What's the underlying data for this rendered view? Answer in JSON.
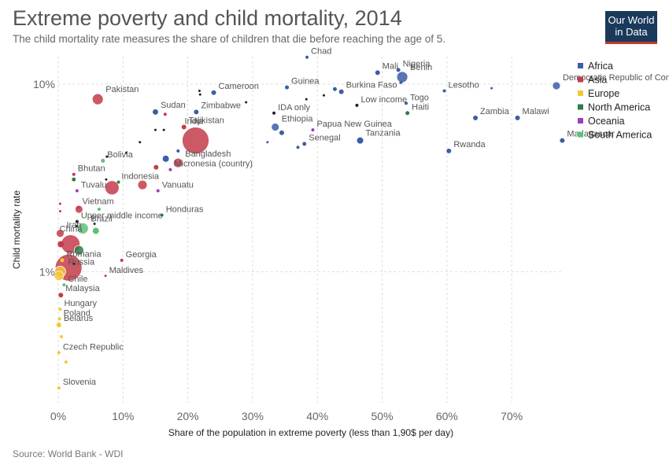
{
  "header": {
    "title": "Extreme poverty and child mortality, 2014",
    "subtitle": "The child mortality rate measures the share of children that die before reaching the age of 5."
  },
  "logo": {
    "line1": "Our World",
    "line2": "in Data"
  },
  "footer": {
    "source": "Source: World Bank - WDI"
  },
  "chart_data": {
    "type": "scatter",
    "title": "Extreme poverty and child mortality, 2014",
    "xlabel": "Share of the population in extreme poverty (less than 1,90$ per day)",
    "ylabel": "Child mortality rate",
    "x_unit": "%",
    "y_unit": "%",
    "xlim": [
      0,
      78
    ],
    "ylim": [
      0.2,
      14
    ],
    "y_scale": "log",
    "x_ticks": [
      0,
      10,
      20,
      30,
      40,
      50,
      60,
      70
    ],
    "x_tick_labels": [
      "0%",
      "10%",
      "20%",
      "30%",
      "40%",
      "50%",
      "60%",
      "70%"
    ],
    "y_ticks": [
      1,
      10
    ],
    "y_tick_labels": [
      "1%",
      "10%"
    ],
    "grid": true,
    "legend_position": "right",
    "legend": [
      {
        "name": "Africa",
        "color": "#3c5da8"
      },
      {
        "name": "Asia",
        "color": "#c33c4a"
      },
      {
        "name": "Europe",
        "color": "#f3c737"
      },
      {
        "name": "North America",
        "color": "#2e7d45"
      },
      {
        "name": "Oceania",
        "color": "#9b3fb5"
      },
      {
        "name": "South America",
        "color": "#5fc07a"
      }
    ],
    "points": [
      {
        "label": "Chad",
        "x": 38.4,
        "y": 13.9,
        "region": "Africa",
        "size": 2
      },
      {
        "label": "Mali",
        "x": 49.3,
        "y": 11.5,
        "region": "Africa",
        "size": 3
      },
      {
        "label": "Nigeria",
        "x": 52.5,
        "y": 11.9,
        "region": "Africa",
        "size": 2.5
      },
      {
        "label": "Benin",
        "x": 53.1,
        "y": 10.9,
        "region": "Africa",
        "size": 7
      },
      {
        "label": "",
        "x": 52.9,
        "y": 10.2,
        "region": "Africa",
        "size": 2
      },
      {
        "label": "Democratic Republic of Congo",
        "x": 76.9,
        "y": 9.8,
        "region": "Africa",
        "size": 5
      },
      {
        "label": "Lesotho",
        "x": 59.6,
        "y": 9.2,
        "region": "Africa",
        "size": 2
      },
      {
        "label": "",
        "x": 66.9,
        "y": 9.5,
        "region": "Africa",
        "size": 1.5
      },
      {
        "label": "Burkina Faso",
        "x": 43.7,
        "y": 9.1,
        "region": "Africa",
        "size": 3
      },
      {
        "label": "",
        "x": 42.7,
        "y": 9.4,
        "region": "Africa",
        "size": 2.5
      },
      {
        "label": "Guinea",
        "x": 35.3,
        "y": 9.6,
        "region": "Africa",
        "size": 2.5
      },
      {
        "label": "Cameroon",
        "x": 24,
        "y": 9,
        "region": "Africa",
        "size": 3
      },
      {
        "label": "Togo",
        "x": 53.7,
        "y": 7.9,
        "region": "Africa",
        "size": 2
      },
      {
        "label": "Low income",
        "x": 46.1,
        "y": 7.7,
        "region": "",
        "size": 2
      },
      {
        "label": "IDA only",
        "x": 33.3,
        "y": 7,
        "region": "",
        "size": 2
      },
      {
        "label": "Haiti",
        "x": 53.9,
        "y": 7,
        "region": "North America",
        "size": 2.5
      },
      {
        "label": "Sudan",
        "x": 15,
        "y": 7.1,
        "region": "Africa",
        "size": 3.5
      },
      {
        "label": "Zimbabwe",
        "x": 21.3,
        "y": 7.1,
        "region": "Africa",
        "size": 3
      },
      {
        "label": "Zambia",
        "x": 64.4,
        "y": 6.6,
        "region": "Africa",
        "size": 3
      },
      {
        "label": "Malawi",
        "x": 70.9,
        "y": 6.6,
        "region": "Africa",
        "size": 3
      },
      {
        "label": "Ethiopia",
        "x": 33.5,
        "y": 5.9,
        "region": "Africa",
        "size": 5
      },
      {
        "label": "",
        "x": 34.5,
        "y": 5.5,
        "region": "Africa",
        "size": 3
      },
      {
        "label": "Papua New Guinea",
        "x": 39.3,
        "y": 5.7,
        "region": "Oceania",
        "size": 2
      },
      {
        "label": "Madagascar",
        "x": 77.8,
        "y": 5,
        "region": "Africa",
        "size": 3
      },
      {
        "label": "Tanzania",
        "x": 46.6,
        "y": 5,
        "region": "Africa",
        "size": 4
      },
      {
        "label": "Senegal",
        "x": 38,
        "y": 4.8,
        "region": "Africa",
        "size": 2.5
      },
      {
        "label": "",
        "x": 32.3,
        "y": 4.9,
        "region": "Africa",
        "size": 1.5
      },
      {
        "label": "",
        "x": 37,
        "y": 4.6,
        "region": "Africa",
        "size": 2
      },
      {
        "label": "Rwanda",
        "x": 60.3,
        "y": 4.4,
        "region": "Africa",
        "size": 3
      },
      {
        "label": "Pakistan",
        "x": 6.1,
        "y": 8.3,
        "region": "Asia",
        "size": 7
      },
      {
        "label": "",
        "x": 16.5,
        "y": 6.9,
        "region": "Asia",
        "size": 2
      },
      {
        "label": "India",
        "x": 21.2,
        "y": 5,
        "region": "Asia",
        "size": 17
      },
      {
        "label": "Tajikistan",
        "x": 19.4,
        "y": 5.9,
        "region": "Asia",
        "size": 3
      },
      {
        "label": "Bangladesh",
        "x": 18.5,
        "y": 3.8,
        "region": "Asia",
        "size": 6
      },
      {
        "label": "",
        "x": 16.6,
        "y": 4,
        "region": "Africa",
        "size": 4
      },
      {
        "label": "",
        "x": 15.1,
        "y": 3.6,
        "region": "Asia",
        "size": 3
      },
      {
        "label": "Micronesia (country)",
        "x": 17.3,
        "y": 3.5,
        "region": "Oceania",
        "size": 2
      },
      {
        "label": "",
        "x": 18.5,
        "y": 4.4,
        "region": "Africa",
        "size": 2
      },
      {
        "label": "Bolivia",
        "x": 6.9,
        "y": 3.9,
        "region": "South America",
        "size": 2.5
      },
      {
        "label": "Bhutan",
        "x": 2.4,
        "y": 3.3,
        "region": "Asia",
        "size": 2
      },
      {
        "label": "Tuvalu",
        "x": 2.9,
        "y": 2.7,
        "region": "Oceania",
        "size": 2
      },
      {
        "label": "",
        "x": 2.4,
        "y": 3.1,
        "region": "North America",
        "size": 2.5
      },
      {
        "label": "Indonesia",
        "x": 8.3,
        "y": 2.8,
        "region": "Asia",
        "size": 9
      },
      {
        "label": "",
        "x": 9.3,
        "y": 3,
        "region": "North America",
        "size": 2
      },
      {
        "label": "Vanuatu",
        "x": 15.4,
        "y": 2.7,
        "region": "Oceania",
        "size": 2
      },
      {
        "label": "",
        "x": 13,
        "y": 2.9,
        "region": "Asia",
        "size": 6
      },
      {
        "label": "Vietnam",
        "x": 3.1,
        "y": 2.2,
        "region": "Asia",
        "size": 2
      },
      {
        "label": "",
        "x": 3.2,
        "y": 2.15,
        "region": "Asia",
        "size": 5
      },
      {
        "label": "",
        "x": 6.3,
        "y": 2.15,
        "region": "South America",
        "size": 2
      },
      {
        "label": "Honduras",
        "x": 16,
        "y": 2,
        "region": "North America",
        "size": 2
      },
      {
        "label": "Upper middle income",
        "x": 2.9,
        "y": 1.85,
        "region": "",
        "size": 2
      },
      {
        "label": "Brazil",
        "x": 3.8,
        "y": 1.7,
        "region": "South America",
        "size": 7
      },
      {
        "label": "",
        "x": 5.8,
        "y": 1.65,
        "region": "South America",
        "size": 4
      },
      {
        "label": "Iran",
        "x": 0.3,
        "y": 1.6,
        "region": "Asia",
        "size": 5
      },
      {
        "label": "China",
        "x": 1.9,
        "y": 1.4,
        "region": "Asia",
        "size": 12
      },
      {
        "label": "",
        "x": 3.2,
        "y": 1.3,
        "region": "North America",
        "size": 6
      },
      {
        "label": "",
        "x": 0.4,
        "y": 1.4,
        "region": "Asia",
        "size": 4
      },
      {
        "label": "Georgia",
        "x": 9.8,
        "y": 1.15,
        "region": "Asia",
        "size": 2
      },
      {
        "label": "Romania",
        "x": 0.6,
        "y": 1.15,
        "region": "Europe",
        "size": 2.5
      },
      {
        "label": "Russia",
        "x": 0.3,
        "y": 1,
        "region": "Europe",
        "size": 7
      },
      {
        "label": "",
        "x": 1.6,
        "y": 1.05,
        "region": "Asia",
        "size": 17
      },
      {
        "label": "",
        "x": 0.1,
        "y": 0.95,
        "region": "Europe",
        "size": 6
      },
      {
        "label": "Maldives",
        "x": 7.3,
        "y": 0.95,
        "region": "Asia",
        "size": 1.5
      },
      {
        "label": "Chile",
        "x": 0.9,
        "y": 0.85,
        "region": "South America",
        "size": 2
      },
      {
        "label": "Malaysia",
        "x": 0.4,
        "y": 0.75,
        "region": "Asia",
        "size": 3
      },
      {
        "label": "Hungary",
        "x": 0.3,
        "y": 0.63,
        "region": "Europe",
        "size": 2
      },
      {
        "label": "Poland",
        "x": 0.2,
        "y": 0.56,
        "region": "Europe",
        "size": 2
      },
      {
        "label": "Belarus",
        "x": 0.1,
        "y": 0.52,
        "region": "Europe",
        "size": 3
      },
      {
        "label": "",
        "x": 0.5,
        "y": 0.45,
        "region": "Europe",
        "size": 2
      },
      {
        "label": "Czech Republic",
        "x": 0.1,
        "y": 0.37,
        "region": "Europe",
        "size": 2
      },
      {
        "label": "",
        "x": 1.2,
        "y": 0.33,
        "region": "Europe",
        "size": 2
      },
      {
        "label": "Slovenia",
        "x": 0.1,
        "y": 0.24,
        "region": "Europe",
        "size": 2
      },
      {
        "label": "",
        "x": 21.9,
        "y": 8.8,
        "region": "",
        "size": 1.5
      },
      {
        "label": "",
        "x": 21.8,
        "y": 9.2,
        "region": "",
        "size": 1.5
      },
      {
        "label": "",
        "x": 29,
        "y": 8,
        "region": "",
        "size": 1.5
      },
      {
        "label": "",
        "x": 38.3,
        "y": 8.3,
        "region": "",
        "size": 1.5
      },
      {
        "label": "",
        "x": 41,
        "y": 8.7,
        "region": "",
        "size": 1.5
      },
      {
        "label": "",
        "x": 16.3,
        "y": 5.7,
        "region": "",
        "size": 1.5
      },
      {
        "label": "",
        "x": 15,
        "y": 5.7,
        "region": "",
        "size": 1.5
      },
      {
        "label": "",
        "x": 12.6,
        "y": 4.9,
        "region": "",
        "size": 1.5
      },
      {
        "label": "",
        "x": 10.5,
        "y": 4.3,
        "region": "",
        "size": 1.5
      },
      {
        "label": "",
        "x": 7.5,
        "y": 4.1,
        "region": "",
        "size": 1.5
      },
      {
        "label": "",
        "x": 7.4,
        "y": 3.1,
        "region": "",
        "size": 1.5
      },
      {
        "label": "",
        "x": 2.9,
        "y": 1.75,
        "region": "",
        "size": 1.5
      },
      {
        "label": "",
        "x": 5.6,
        "y": 1.8,
        "region": "",
        "size": 1.5
      },
      {
        "label": "",
        "x": 2.4,
        "y": 1.1,
        "region": "",
        "size": 1.5
      },
      {
        "label": "",
        "x": 0.3,
        "y": 2.3,
        "region": "Asia",
        "size": 1.5
      },
      {
        "label": "",
        "x": 0.3,
        "y": 2.1,
        "region": "Asia",
        "size": 1.5
      }
    ]
  }
}
